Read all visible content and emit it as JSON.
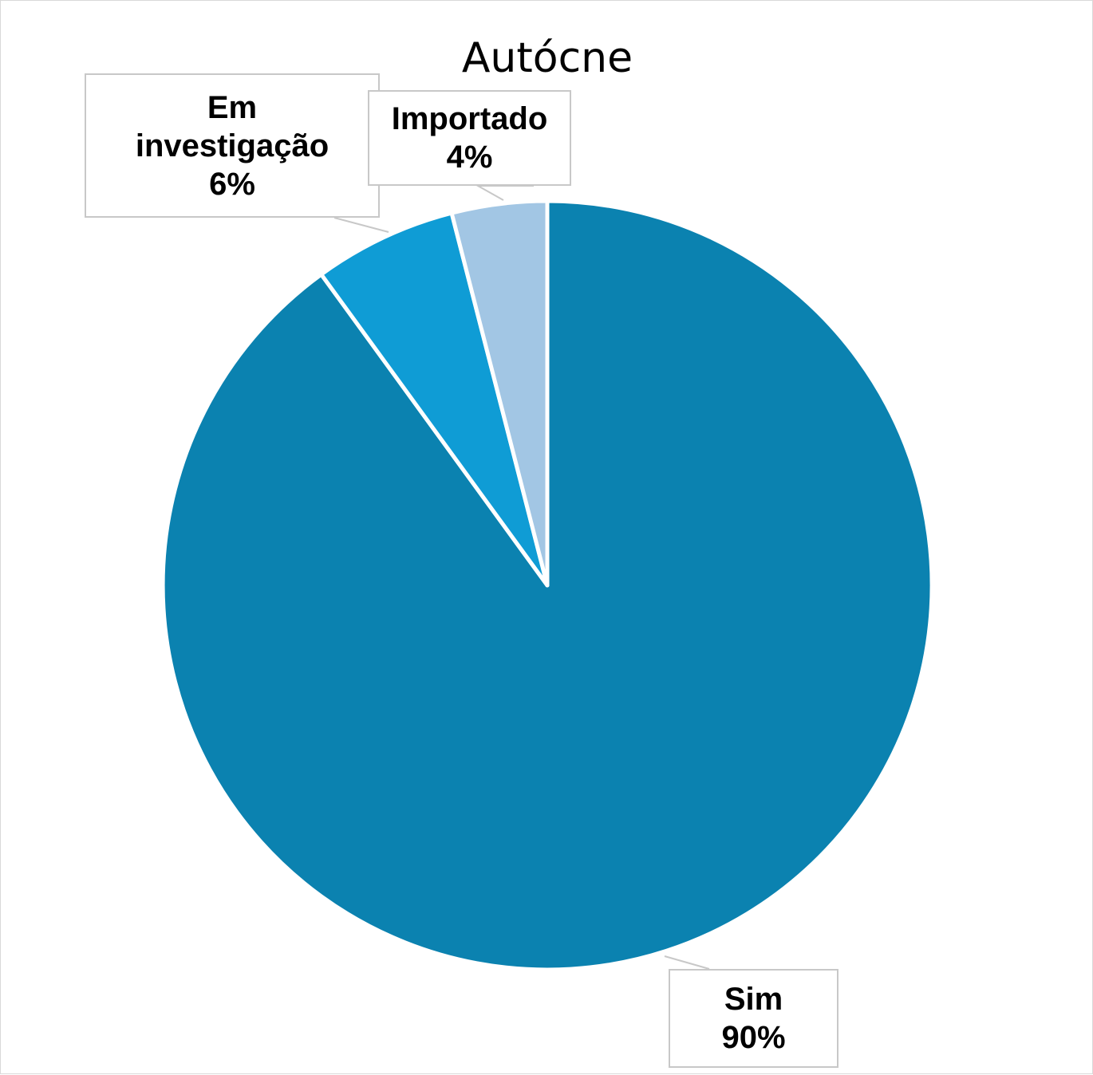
{
  "chart_data": {
    "type": "pie",
    "title": "Autócne",
    "slices": [
      {
        "label": "Sim",
        "value": 90,
        "value_label": "90%",
        "color": "#0b82b0"
      },
      {
        "label": "Em investigação",
        "value": 6,
        "value_label": "6%",
        "color": "#0f9cd5"
      },
      {
        "label": "Importado",
        "value": 4,
        "value_label": "4%",
        "color": "#a2c6e4"
      }
    ],
    "start_angle": "12 o'clock",
    "direction": "clockwise",
    "slice_border_color": "#ffffff",
    "legend": "none",
    "data_labels": "callouts"
  }
}
